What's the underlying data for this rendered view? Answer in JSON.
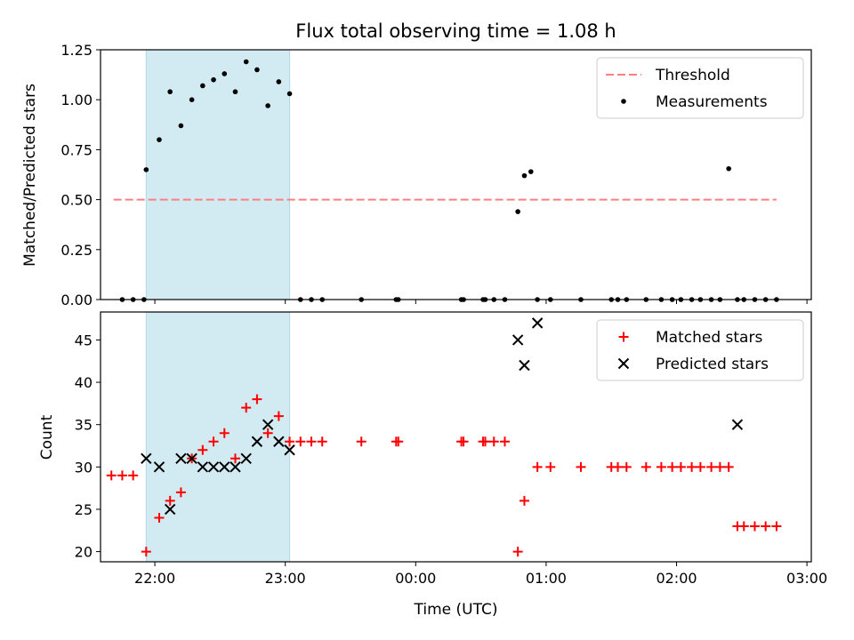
{
  "chart_data": [
    {
      "type": "scatter",
      "title": "Flux total observing time = 1.08 h",
      "xlabel": "",
      "ylabel": "Matched/Predicted stars",
      "xlim": [
        "21:35",
        "03:02"
      ],
      "ylim": [
        0,
        1.25
      ],
      "y_ticks": [
        "0.00",
        "0.25",
        "0.50",
        "0.75",
        "1.00",
        "1.25"
      ],
      "x_ticks": [
        "22:00",
        "23:00",
        "00:00",
        "01:00",
        "02:00",
        "03:00"
      ],
      "shaded_interval": [
        "21:56",
        "23:02"
      ],
      "shaded_color": "#add8e6",
      "legend_position": "top-right",
      "series": [
        {
          "name": "Threshold",
          "kind": "dashed-line",
          "color": "#ff7f7f",
          "x": [
            "21:41",
            "02:46"
          ],
          "y": [
            0.5,
            0.5
          ]
        },
        {
          "name": "Measurements",
          "kind": "dot",
          "color": "#000000",
          "x": [
            "21:45",
            "21:50",
            "21:55",
            "21:56",
            "22:02",
            "22:07",
            "22:12",
            "22:17",
            "22:22",
            "22:27",
            "22:32",
            "22:37",
            "22:42",
            "22:47",
            "22:52",
            "22:57",
            "23:02",
            "23:07",
            "23:12",
            "23:17",
            "23:35",
            "23:51",
            "23:52",
            "00:21",
            "00:22",
            "00:31",
            "00:32",
            "00:36",
            "00:41",
            "00:47",
            "00:50",
            "00:53",
            "00:56",
            "01:02",
            "01:16",
            "01:30",
            "01:33",
            "01:37",
            "01:46",
            "01:53",
            "01:58",
            "02:02",
            "02:07",
            "02:11",
            "02:16",
            "02:20",
            "02:24",
            "02:28",
            "02:31",
            "02:36",
            "02:41",
            "02:46"
          ],
          "y": [
            0,
            0,
            0,
            0.65,
            0.8,
            1.04,
            0.87,
            1.0,
            1.07,
            1.1,
            1.13,
            1.04,
            1.19,
            1.15,
            0.97,
            1.09,
            1.03,
            0,
            0,
            0,
            0,
            0,
            0,
            0,
            0,
            0,
            0,
            0,
            0,
            0.44,
            0.62,
            0.64,
            0,
            0,
            0,
            0,
            0,
            0,
            0,
            0,
            0,
            0,
            0,
            0,
            0,
            0,
            0.655,
            0,
            0,
            0,
            0,
            0
          ]
        }
      ]
    },
    {
      "type": "scatter",
      "xlabel": "Time (UTC)",
      "ylabel": "Count",
      "xlim": [
        "21:35",
        "03:02"
      ],
      "ylim": [
        18.8,
        48.3
      ],
      "y_ticks": [
        "20",
        "25",
        "30",
        "35",
        "40",
        "45"
      ],
      "x_ticks": [
        "22:00",
        "23:00",
        "00:00",
        "01:00",
        "02:00",
        "03:00"
      ],
      "shaded_interval": [
        "21:56",
        "23:02"
      ],
      "shaded_color": "#add8e6",
      "legend_position": "top-right",
      "series": [
        {
          "name": "Matched stars",
          "kind": "plus",
          "color": "#ff0000",
          "x": [
            "21:40",
            "21:45",
            "21:50",
            "21:56",
            "22:02",
            "22:07",
            "22:12",
            "22:17",
            "22:22",
            "22:27",
            "22:32",
            "22:37",
            "22:42",
            "22:47",
            "22:52",
            "22:57",
            "23:02",
            "23:07",
            "23:12",
            "23:17",
            "23:35",
            "23:51",
            "23:52",
            "00:21",
            "00:22",
            "00:31",
            "00:32",
            "00:36",
            "00:41",
            "00:47",
            "00:50",
            "00:56",
            "01:02",
            "01:16",
            "01:30",
            "01:33",
            "01:37",
            "01:46",
            "01:53",
            "01:58",
            "02:02",
            "02:07",
            "02:11",
            "02:16",
            "02:20",
            "02:24",
            "02:28",
            "02:31",
            "02:36",
            "02:41",
            "02:46"
          ],
          "y": [
            29,
            29,
            29,
            20,
            24,
            26,
            27,
            31,
            32,
            33,
            34,
            31,
            37,
            38,
            34,
            36,
            33,
            33,
            33,
            33,
            33,
            33,
            33,
            33,
            33,
            33,
            33,
            33,
            33,
            20,
            26,
            30,
            30,
            30,
            30,
            30,
            30,
            30,
            30,
            30,
            30,
            30,
            30,
            30,
            30,
            30,
            23,
            23,
            23,
            23,
            23
          ]
        },
        {
          "name": "Predicted stars",
          "kind": "x",
          "color": "#000000",
          "x": [
            "21:56",
            "22:02",
            "22:07",
            "22:12",
            "22:17",
            "22:22",
            "22:27",
            "22:32",
            "22:37",
            "22:42",
            "22:47",
            "22:52",
            "22:57",
            "23:02",
            "00:47",
            "00:50",
            "00:56",
            "02:28"
          ],
          "y": [
            31,
            30,
            25,
            31,
            31,
            30,
            30,
            30,
            30,
            31,
            33,
            35,
            33,
            32,
            45,
            42,
            47,
            35
          ]
        }
      ]
    }
  ]
}
